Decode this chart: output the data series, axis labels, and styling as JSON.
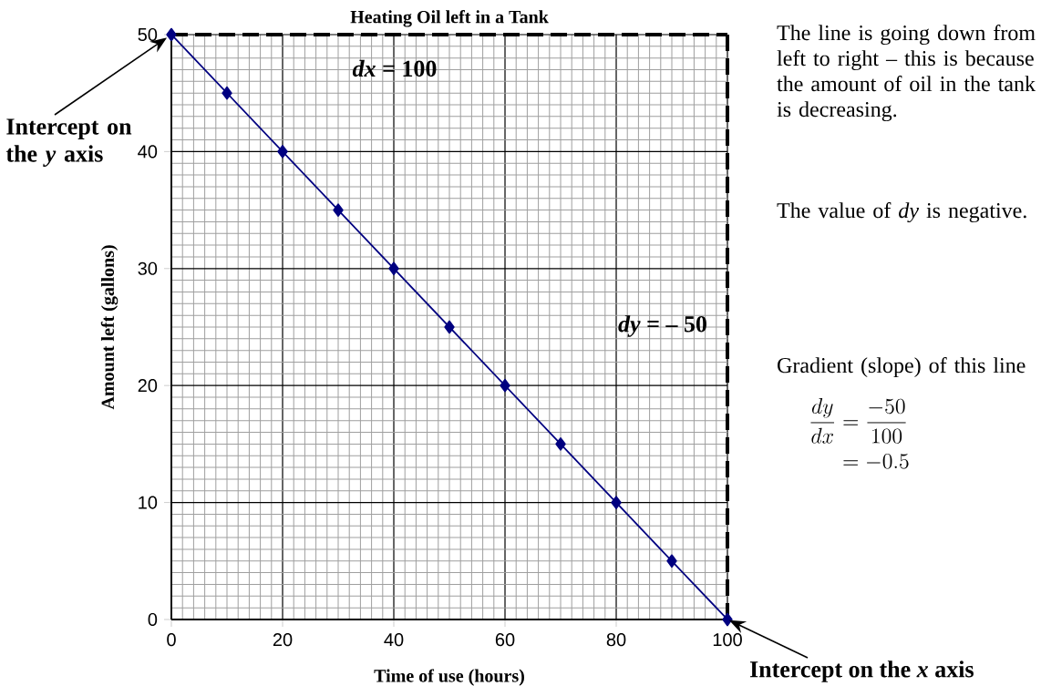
{
  "chart_data": {
    "type": "line",
    "title": "Heating Oil left in a Tank",
    "xlabel": "Time of use (hours)",
    "ylabel": "Amount left (gallons)",
    "x": [
      0,
      10,
      20,
      30,
      40,
      50,
      60,
      70,
      80,
      90,
      100
    ],
    "series": [
      {
        "color": "#000080",
        "values": [
          50,
          45,
          40,
          35,
          30,
          25,
          20,
          15,
          10,
          5,
          0
        ]
      }
    ],
    "xlim": [
      0,
      100
    ],
    "ylim": [
      0,
      50
    ],
    "xticks": [
      0,
      20,
      40,
      60,
      80,
      100
    ],
    "yticks": [
      0,
      10,
      20,
      30,
      40,
      50
    ],
    "grid": true,
    "marker": "diamond",
    "line_style": "solid",
    "ref_lines": [
      {
        "axis": "y",
        "value": 50,
        "color": "#000000",
        "line_style": "dashed"
      },
      {
        "axis": "x",
        "value": 100,
        "color": "#000000",
        "line_style": "dashed"
      }
    ],
    "annotations": [
      "Intercept on the *y* axis",
      {
        "text": "Intercept on the *x* axis",
        "x": 100,
        "y": 0
      },
      "*dx* = 100",
      "*dy* = – 50",
      "The line is going down from left to right – this is because the amount of oil in the tank is decreasing.",
      "The value of *dy* is negative.",
      "Gradient (slope) of this line",
      "\\begin{aligned}\\frac{dy}{dx} &= \\frac{-50}{100}\\\\ &= -0.5\\end{aligned}"
    ]
  }
}
